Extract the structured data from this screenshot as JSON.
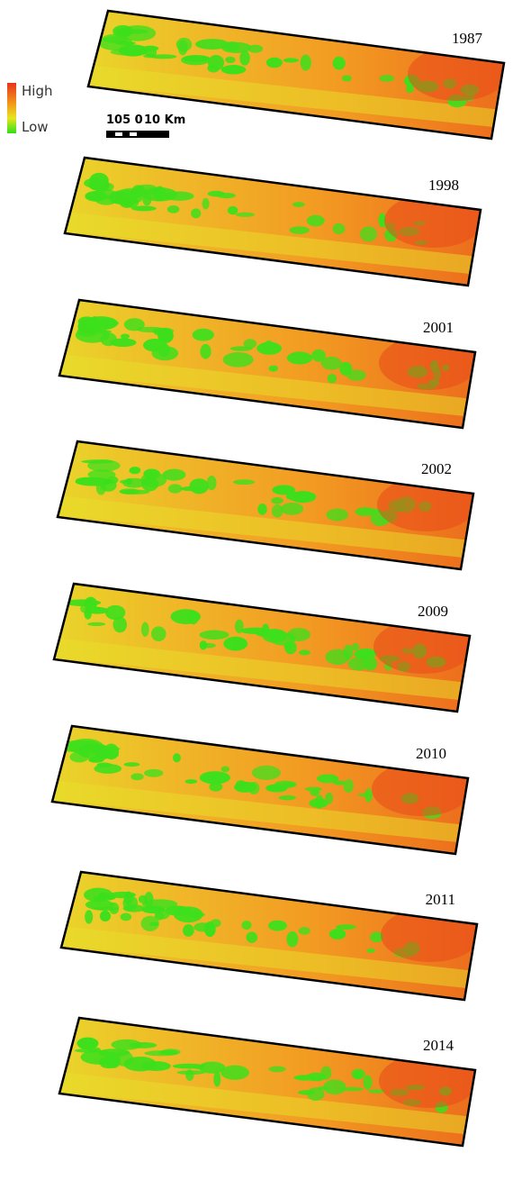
{
  "legend": {
    "high": "High",
    "low": "Low"
  },
  "scale_bar": {
    "labels": [
      "105 0",
      "10 Km"
    ]
  },
  "panels": [
    {
      "year": "1987"
    },
    {
      "year": "1998"
    },
    {
      "year": "2001"
    },
    {
      "year": "2002"
    },
    {
      "year": "2009"
    },
    {
      "year": "2010"
    },
    {
      "year": "2011"
    },
    {
      "year": "2014"
    }
  ]
}
